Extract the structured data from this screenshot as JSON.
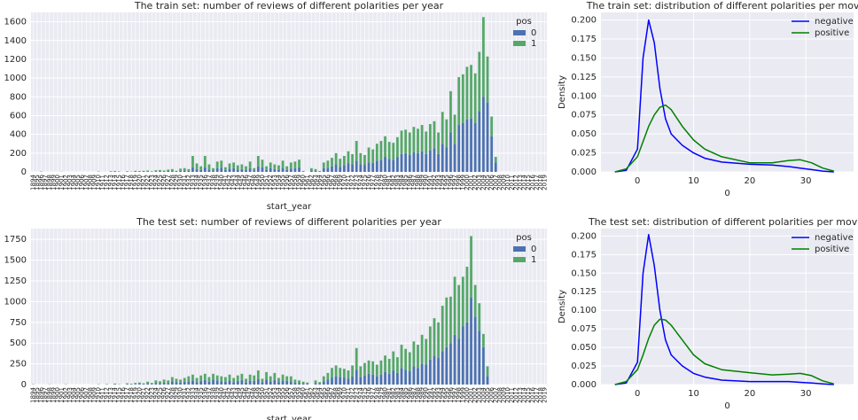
{
  "chart_data": [
    {
      "type": "bar",
      "title": "The train set: number of reviews of different polarities per year",
      "x_label": "start_year",
      "legend_title": "pos",
      "legend": "upper right",
      "stacked": true,
      "categories": [
        1894,
        1895,
        1896,
        1897,
        1898,
        1899,
        1900,
        1901,
        1902,
        1903,
        1904,
        1905,
        1906,
        1907,
        1908,
        1909,
        1910,
        1911,
        1912,
        1913,
        1914,
        1915,
        1916,
        1917,
        1918,
        1919,
        1920,
        1921,
        1922,
        1923,
        1924,
        1925,
        1926,
        1927,
        1928,
        1929,
        1930,
        1931,
        1932,
        1933,
        1934,
        1935,
        1936,
        1937,
        1938,
        1939,
        1940,
        1941,
        1942,
        1943,
        1944,
        1945,
        1946,
        1947,
        1948,
        1949,
        1950,
        1951,
        1952,
        1953,
        1954,
        1955,
        1956,
        1957,
        1958,
        1959,
        1960,
        1961,
        1962,
        1963,
        1964,
        1965,
        1966,
        1967,
        1968,
        1969,
        1970,
        1971,
        1972,
        1973,
        1974,
        1975,
        1976,
        1977,
        1978,
        1979,
        1980,
        1981,
        1982,
        1983,
        1984,
        1985,
        1986,
        1987,
        1988,
        1989,
        1990,
        1991,
        1992,
        1993,
        1994,
        1995,
        1996,
        1997,
        1998,
        1999,
        2000,
        2001,
        2002,
        2003,
        2004,
        2005,
        2006,
        2007,
        2008,
        2009,
        2010,
        2011,
        2012,
        2013,
        2014,
        2015,
        2016,
        2017,
        2018,
        2019
      ],
      "series": [
        {
          "name": "0",
          "color": "#4c72b0",
          "values": [
            0,
            0,
            2,
            0,
            0,
            0,
            0,
            1,
            0,
            0,
            0,
            0,
            0,
            0,
            0,
            0,
            2,
            0,
            0,
            3,
            4,
            3,
            0,
            3,
            2,
            5,
            4,
            5,
            6,
            3,
            7,
            8,
            6,
            10,
            12,
            5,
            12,
            15,
            10,
            50,
            30,
            20,
            50,
            25,
            15,
            40,
            45,
            20,
            35,
            40,
            25,
            30,
            20,
            40,
            15,
            60,
            50,
            20,
            40,
            30,
            25,
            45,
            20,
            35,
            40,
            50,
            4,
            0,
            15,
            10,
            4,
            40,
            45,
            60,
            80,
            55,
            70,
            90,
            80,
            120,
            80,
            75,
            100,
            95,
            120,
            130,
            160,
            140,
            130,
            160,
            190,
            200,
            180,
            210,
            200,
            220,
            190,
            230,
            250,
            190,
            300,
            260,
            420,
            300,
            500,
            520,
            560,
            570,
            520,
            650,
            800,
            740,
            380,
            100,
            0,
            0,
            0,
            0,
            0,
            0,
            0,
            0,
            0,
            0,
            0,
            0
          ]
        },
        {
          "name": "1",
          "color": "#55a868",
          "values": [
            0,
            0,
            3,
            0,
            0,
            0,
            0,
            1,
            0,
            0,
            0,
            0,
            0,
            0,
            0,
            0,
            3,
            0,
            0,
            5,
            6,
            3,
            0,
            5,
            2,
            7,
            6,
            7,
            9,
            5,
            11,
            12,
            9,
            15,
            18,
            7,
            23,
            25,
            20,
            120,
            60,
            40,
            120,
            55,
            25,
            70,
            75,
            30,
            55,
            60,
            45,
            50,
            40,
            70,
            25,
            110,
            80,
            40,
            60,
            50,
            45,
            75,
            40,
            65,
            70,
            80,
            6,
            0,
            25,
            20,
            6,
            60,
            75,
            90,
            120,
            85,
            100,
            130,
            110,
            210,
            120,
            105,
            160,
            145,
            180,
            200,
            220,
            180,
            180,
            210,
            250,
            250,
            240,
            270,
            260,
            280,
            240,
            280,
            290,
            230,
            340,
            300,
            440,
            310,
            510,
            520,
            560,
            570,
            530,
            630,
            850,
            490,
            210,
            60,
            0,
            0,
            0,
            0,
            0,
            0,
            0,
            0,
            0,
            0,
            0,
            0
          ]
        }
      ],
      "ylim": [
        0,
        1700
      ],
      "yticks": [
        0,
        200,
        400,
        600,
        800,
        1000,
        1200,
        1400,
        1600
      ],
      "grid": true
    },
    {
      "type": "line",
      "title": "The train set: distribution of different polarities per movie",
      "x_label": "0",
      "y_label": "Density",
      "legend": "upper right",
      "x": [
        -4,
        -2,
        0,
        1,
        2,
        3,
        4,
        5,
        6,
        8,
        10,
        12,
        15,
        20,
        24,
        27,
        29,
        31,
        33,
        35
      ],
      "series": [
        {
          "name": "negative",
          "color": "#0000ff",
          "values": [
            0,
            0.002,
            0.03,
            0.15,
            0.2,
            0.17,
            0.11,
            0.07,
            0.05,
            0.035,
            0.025,
            0.018,
            0.013,
            0.01,
            0.009,
            0.007,
            0.005,
            0.003,
            0.001,
            0
          ]
        },
        {
          "name": "positive",
          "color": "#008000",
          "values": [
            0,
            0.004,
            0.02,
            0.04,
            0.06,
            0.075,
            0.085,
            0.088,
            0.082,
            0.06,
            0.042,
            0.03,
            0.02,
            0.012,
            0.012,
            0.015,
            0.016,
            0.012,
            0.005,
            0.001
          ]
        }
      ],
      "xlim": [
        -6.5,
        38.5
      ],
      "xticks": [
        0,
        10,
        20,
        30
      ],
      "ylim": [
        0,
        0.21
      ],
      "yticks": [
        {
          "value": 0,
          "label": "0.000"
        },
        {
          "value": 0.025,
          "label": "0.025"
        },
        {
          "value": 0.05,
          "label": "0.050"
        },
        {
          "value": 0.075,
          "label": "0.075"
        },
        {
          "value": 0.1,
          "label": "0.100"
        },
        {
          "value": 0.125,
          "label": "0.125"
        },
        {
          "value": 0.15,
          "label": "0.150"
        },
        {
          "value": 0.175,
          "label": "0.175"
        },
        {
          "value": 0.2,
          "label": "0.200"
        }
      ],
      "grid": true
    },
    {
      "type": "bar",
      "title": "The test set: number of reviews of different polarities per year",
      "x_label": "start_year",
      "legend_title": "pos",
      "legend": "upper right",
      "stacked": true,
      "categories": [
        1894,
        1895,
        1896,
        1897,
        1898,
        1899,
        1900,
        1901,
        1902,
        1903,
        1904,
        1905,
        1906,
        1907,
        1908,
        1909,
        1910,
        1911,
        1912,
        1913,
        1914,
        1915,
        1916,
        1917,
        1918,
        1919,
        1920,
        1921,
        1922,
        1923,
        1924,
        1925,
        1926,
        1927,
        1928,
        1929,
        1930,
        1931,
        1932,
        1933,
        1934,
        1935,
        1936,
        1937,
        1938,
        1939,
        1940,
        1941,
        1942,
        1943,
        1944,
        1945,
        1946,
        1947,
        1948,
        1949,
        1950,
        1951,
        1952,
        1953,
        1954,
        1955,
        1956,
        1957,
        1958,
        1959,
        1960,
        1961,
        1962,
        1963,
        1964,
        1965,
        1966,
        1967,
        1968,
        1969,
        1970,
        1971,
        1972,
        1973,
        1974,
        1975,
        1976,
        1977,
        1978,
        1979,
        1980,
        1981,
        1982,
        1983,
        1984,
        1985,
        1986,
        1987,
        1988,
        1989,
        1990,
        1991,
        1992,
        1993,
        1994,
        1995,
        1996,
        1997,
        1998,
        1999,
        2000,
        2001,
        2002,
        2003,
        2004,
        2005,
        2006,
        2007,
        2008,
        2009,
        2010,
        2011,
        2012,
        2013,
        2014,
        2015,
        2016,
        2017,
        2018,
        2019
      ],
      "series": [
        {
          "name": "0",
          "color": "#4c72b0",
          "values": [
            2,
            0,
            0,
            0,
            1,
            0,
            0,
            0,
            2,
            0,
            0,
            0,
            0,
            0,
            0,
            0,
            2,
            0,
            3,
            0,
            5,
            2,
            0,
            6,
            4,
            8,
            10,
            5,
            15,
            8,
            20,
            15,
            25,
            20,
            40,
            30,
            25,
            35,
            40,
            50,
            30,
            45,
            55,
            35,
            60,
            50,
            40,
            35,
            50,
            30,
            45,
            55,
            25,
            50,
            45,
            65,
            30,
            60,
            40,
            55,
            30,
            50,
            45,
            40,
            25,
            20,
            15,
            10,
            0,
            20,
            10,
            40,
            60,
            80,
            100,
            90,
            80,
            70,
            100,
            180,
            90,
            110,
            130,
            120,
            100,
            120,
            150,
            130,
            170,
            140,
            200,
            180,
            160,
            220,
            200,
            250,
            240,
            300,
            350,
            320,
            400,
            450,
            500,
            600,
            550,
            700,
            750,
            1050,
            820,
            650,
            450,
            100,
            0,
            0,
            0,
            0,
            0,
            0,
            0,
            0,
            0,
            0,
            0,
            0,
            0,
            0
          ]
        },
        {
          "name": "1",
          "color": "#55a868",
          "values": [
            3,
            0,
            0,
            0,
            2,
            0,
            0,
            0,
            3,
            0,
            0,
            0,
            0,
            0,
            0,
            0,
            3,
            0,
            4,
            0,
            7,
            3,
            0,
            9,
            6,
            12,
            15,
            10,
            20,
            12,
            30,
            25,
            35,
            30,
            50,
            40,
            35,
            45,
            60,
            70,
            50,
            65,
            75,
            55,
            70,
            60,
            60,
            55,
            70,
            50,
            65,
            75,
            45,
            70,
            65,
            105,
            40,
            90,
            60,
            85,
            50,
            70,
            55,
            60,
            35,
            30,
            20,
            15,
            0,
            30,
            20,
            60,
            80,
            120,
            130,
            110,
            110,
            100,
            130,
            260,
            130,
            150,
            160,
            160,
            140,
            170,
            200,
            180,
            230,
            190,
            280,
            250,
            230,
            300,
            280,
            350,
            310,
            400,
            450,
            430,
            550,
            600,
            560,
            700,
            650,
            600,
            670,
            740,
            380,
            330,
            160,
            120,
            0,
            0,
            0,
            0,
            0,
            0,
            0,
            0,
            0,
            0,
            0,
            0,
            0,
            0
          ]
        }
      ],
      "ylim": [
        0,
        1880
      ],
      "yticks": [
        0,
        250,
        500,
        750,
        1000,
        1250,
        1500,
        1750
      ],
      "grid": true
    },
    {
      "type": "line",
      "title": "The test set: distribution of different polarities per movie",
      "x_label": "0",
      "y_label": "Density",
      "legend": "upper right",
      "x": [
        -4,
        -2,
        0,
        1,
        2,
        3,
        4,
        5,
        6,
        8,
        10,
        12,
        15,
        20,
        24,
        27,
        29,
        31,
        33,
        35
      ],
      "series": [
        {
          "name": "negative",
          "color": "#0000ff",
          "values": [
            0,
            0.002,
            0.03,
            0.15,
            0.202,
            0.16,
            0.1,
            0.06,
            0.04,
            0.025,
            0.015,
            0.01,
            0.006,
            0.004,
            0.004,
            0.004,
            0.003,
            0.002,
            0.001,
            0
          ]
        },
        {
          "name": "positive",
          "color": "#008000",
          "values": [
            0,
            0.004,
            0.02,
            0.04,
            0.062,
            0.08,
            0.088,
            0.087,
            0.08,
            0.06,
            0.04,
            0.028,
            0.02,
            0.016,
            0.013,
            0.014,
            0.015,
            0.012,
            0.005,
            0.001
          ]
        }
      ],
      "xlim": [
        -6.5,
        38.5
      ],
      "xticks": [
        0,
        10,
        20,
        30
      ],
      "ylim": [
        0,
        0.21
      ],
      "yticks": [
        {
          "value": 0,
          "label": "0.000"
        },
        {
          "value": 0.025,
          "label": "0.025"
        },
        {
          "value": 0.05,
          "label": "0.050"
        },
        {
          "value": 0.075,
          "label": "0.075"
        },
        {
          "value": 0.1,
          "label": "0.100"
        },
        {
          "value": 0.125,
          "label": "0.125"
        },
        {
          "value": 0.15,
          "label": "0.150"
        },
        {
          "value": 0.175,
          "label": "0.175"
        },
        {
          "value": 0.2,
          "label": "0.200"
        }
      ],
      "grid": true
    }
  ]
}
